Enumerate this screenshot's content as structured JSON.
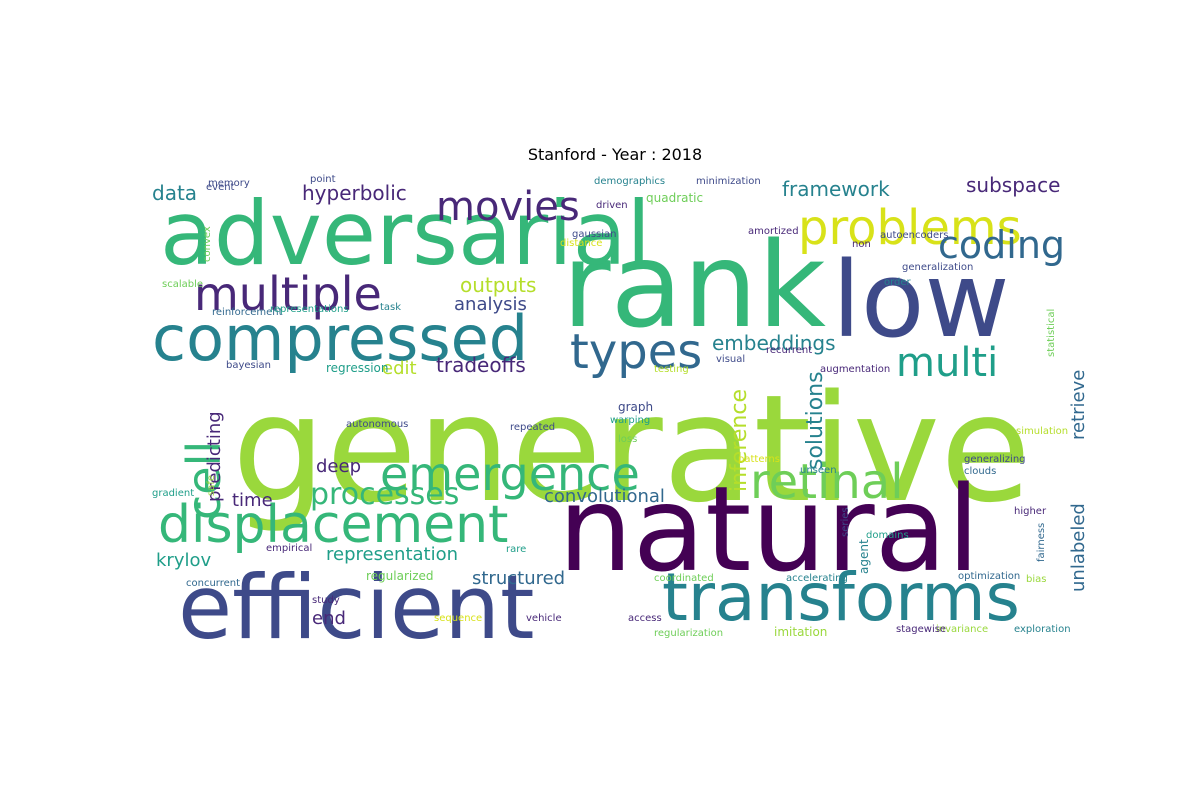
{
  "title": "Stanford - Year : 2018",
  "palette": {
    "dark_purple": "#440154",
    "purple": "#482878",
    "indigo": "#3e4a89",
    "blue": "#31688e",
    "teal": "#26828e",
    "cyan": "#1f9e89",
    "green": "#35b779",
    "light_green": "#6ece58",
    "lime": "#9ad83c",
    "yellow_green": "#b5de2b",
    "yellow": "#d8e219"
  },
  "words": [
    {
      "text": "generative",
      "size": 148,
      "color": "lime",
      "vertical": false
    },
    {
      "text": "natural",
      "size": 118,
      "color": "dark_purple",
      "vertical": false
    },
    {
      "text": "rank",
      "size": 118,
      "color": "green",
      "vertical": false
    },
    {
      "text": "low",
      "size": 104,
      "color": "indigo",
      "vertical": false
    },
    {
      "text": "adversarial",
      "size": 88,
      "color": "green",
      "vertical": false
    },
    {
      "text": "efficient",
      "size": 88,
      "color": "indigo",
      "vertical": false
    },
    {
      "text": "transforms",
      "size": 66,
      "color": "teal",
      "vertical": false
    },
    {
      "text": "compressed",
      "size": 62,
      "color": "teal",
      "vertical": false
    },
    {
      "text": "displacement",
      "size": 52,
      "color": "green",
      "vertical": false
    },
    {
      "text": "emergence",
      "size": 46,
      "color": "green",
      "vertical": false
    },
    {
      "text": "problems",
      "size": 48,
      "color": "yellow",
      "vertical": false
    },
    {
      "text": "retinal",
      "size": 48,
      "color": "light_green",
      "vertical": false
    },
    {
      "text": "types",
      "size": 48,
      "color": "blue",
      "vertical": false
    },
    {
      "text": "multiple",
      "size": 46,
      "color": "purple",
      "vertical": false
    },
    {
      "text": "cell",
      "size": 46,
      "color": "green",
      "vertical": true
    },
    {
      "text": "multi",
      "size": 40,
      "color": "cyan",
      "vertical": false
    },
    {
      "text": "movies",
      "size": 40,
      "color": "purple",
      "vertical": false
    },
    {
      "text": "coding",
      "size": 38,
      "color": "blue",
      "vertical": false
    },
    {
      "text": "processes",
      "size": 30,
      "color": "green",
      "vertical": false
    },
    {
      "text": "inference",
      "size": 22,
      "color": "yellow_green",
      "vertical": true
    },
    {
      "text": "solutions",
      "size": 22,
      "color": "teal",
      "vertical": true
    },
    {
      "text": "embeddings",
      "size": 20,
      "color": "teal",
      "vertical": false
    },
    {
      "text": "hyperbolic",
      "size": 20,
      "color": "purple",
      "vertical": false
    },
    {
      "text": "outputs",
      "size": 20,
      "color": "yellow_green",
      "vertical": false
    },
    {
      "text": "tradeoffs",
      "size": 20,
      "color": "purple",
      "vertical": false
    },
    {
      "text": "framework",
      "size": 20,
      "color": "teal",
      "vertical": false
    },
    {
      "text": "subspace",
      "size": 20,
      "color": "purple",
      "vertical": false
    },
    {
      "text": "data",
      "size": 20,
      "color": "teal",
      "vertical": false
    },
    {
      "text": "analysis",
      "size": 18,
      "color": "indigo",
      "vertical": false
    },
    {
      "text": "edit",
      "size": 18,
      "color": "yellow_green",
      "vertical": false
    },
    {
      "text": "convolutional",
      "size": 18,
      "color": "blue",
      "vertical": false
    },
    {
      "text": "deep",
      "size": 18,
      "color": "purple",
      "vertical": false
    },
    {
      "text": "time",
      "size": 18,
      "color": "purple",
      "vertical": false
    },
    {
      "text": "krylov",
      "size": 18,
      "color": "cyan",
      "vertical": false
    },
    {
      "text": "representation",
      "size": 18,
      "color": "cyan",
      "vertical": false
    },
    {
      "text": "structured",
      "size": 18,
      "color": "blue",
      "vertical": false
    },
    {
      "text": "end",
      "size": 18,
      "color": "purple",
      "vertical": false
    },
    {
      "text": "predicting",
      "size": 18,
      "color": "purple",
      "vertical": true
    },
    {
      "text": "retrieve",
      "size": 18,
      "color": "blue",
      "vertical": true
    },
    {
      "text": "unlabeled",
      "size": 18,
      "color": "blue",
      "vertical": true
    },
    {
      "text": "regularized",
      "size": 12,
      "color": "light_green",
      "vertical": false
    },
    {
      "text": "regression",
      "size": 12,
      "color": "cyan",
      "vertical": false
    },
    {
      "text": "graph",
      "size": 12,
      "color": "indigo",
      "vertical": false
    },
    {
      "text": "gaussian",
      "size": 10,
      "color": "indigo",
      "vertical": false
    },
    {
      "text": "quadratic",
      "size": 12,
      "color": "light_green",
      "vertical": false
    },
    {
      "text": "amortized",
      "size": 10,
      "color": "purple",
      "vertical": false
    },
    {
      "text": "autoencoders",
      "size": 10,
      "color": "indigo",
      "vertical": false
    },
    {
      "text": "non",
      "size": 10,
      "color": "purple",
      "vertical": false
    },
    {
      "text": "generalization",
      "size": 10,
      "color": "indigo",
      "vertical": false
    },
    {
      "text": "order",
      "size": 10,
      "color": "teal",
      "vertical": false
    },
    {
      "text": "recurrent",
      "size": 10,
      "color": "purple",
      "vertical": false
    },
    {
      "text": "augmentation",
      "size": 10,
      "color": "purple",
      "vertical": false
    },
    {
      "text": "testing",
      "size": 10,
      "color": "yellow_green",
      "vertical": false
    },
    {
      "text": "visual",
      "size": 10,
      "color": "indigo",
      "vertical": false
    },
    {
      "text": "repeated",
      "size": 10,
      "color": "indigo",
      "vertical": false
    },
    {
      "text": "warping",
      "size": 10,
      "color": "cyan",
      "vertical": false
    },
    {
      "text": "loss",
      "size": 10,
      "color": "light_green",
      "vertical": false
    },
    {
      "text": "patterns",
      "size": 10,
      "color": "yellow",
      "vertical": false
    },
    {
      "text": "unseen",
      "size": 10,
      "color": "teal",
      "vertical": false
    },
    {
      "text": "series",
      "size": 10,
      "color": "indigo",
      "vertical": true
    },
    {
      "text": "agent",
      "size": 12,
      "color": "teal",
      "vertical": true
    },
    {
      "text": "domains",
      "size": 10,
      "color": "cyan",
      "vertical": false
    },
    {
      "text": "coordinated",
      "size": 10,
      "color": "light_green",
      "vertical": false
    },
    {
      "text": "accelerating",
      "size": 10,
      "color": "teal",
      "vertical": false
    },
    {
      "text": "optimization",
      "size": 10,
      "color": "blue",
      "vertical": false
    },
    {
      "text": "bias",
      "size": 10,
      "color": "lime",
      "vertical": false
    },
    {
      "text": "fairness",
      "size": 10,
      "color": "blue",
      "vertical": true
    },
    {
      "text": "higher",
      "size": 10,
      "color": "purple",
      "vertical": false
    },
    {
      "text": "clouds",
      "size": 10,
      "color": "blue",
      "vertical": false
    },
    {
      "text": "generalizing",
      "size": 10,
      "color": "indigo",
      "vertical": false
    },
    {
      "text": "simulation",
      "size": 10,
      "color": "yellow_green",
      "vertical": false
    },
    {
      "text": "statistical",
      "size": 10,
      "color": "light_green",
      "vertical": true
    },
    {
      "text": "exploration",
      "size": 10,
      "color": "teal",
      "vertical": false
    },
    {
      "text": "invariance",
      "size": 10,
      "color": "lime",
      "vertical": false
    },
    {
      "text": "stagewise",
      "size": 10,
      "color": "purple",
      "vertical": false
    },
    {
      "text": "imitation",
      "size": 12,
      "color": "lime",
      "vertical": false
    },
    {
      "text": "regularization",
      "size": 10,
      "color": "light_green",
      "vertical": false
    },
    {
      "text": "access",
      "size": 10,
      "color": "purple",
      "vertical": false
    },
    {
      "text": "vehicle",
      "size": 10,
      "color": "purple",
      "vertical": false
    },
    {
      "text": "sequence",
      "size": 10,
      "color": "yellow",
      "vertical": false
    },
    {
      "text": "study",
      "size": 10,
      "color": "purple",
      "vertical": false
    },
    {
      "text": "concurrent",
      "size": 10,
      "color": "blue",
      "vertical": false
    },
    {
      "text": "empirical",
      "size": 10,
      "color": "purple",
      "vertical": false
    },
    {
      "text": "rare",
      "size": 10,
      "color": "cyan",
      "vertical": false
    },
    {
      "text": "safe",
      "size": 10,
      "color": "lime",
      "vertical": true
    },
    {
      "text": "gradient",
      "size": 10,
      "color": "cyan",
      "vertical": false
    },
    {
      "text": "autonomous",
      "size": 10,
      "color": "indigo",
      "vertical": false
    },
    {
      "text": "bayesian",
      "size": 10,
      "color": "indigo",
      "vertical": false
    },
    {
      "text": "reinforcement",
      "size": 10,
      "color": "blue",
      "vertical": false
    },
    {
      "text": "representations",
      "size": 10,
      "color": "cyan",
      "vertical": false
    },
    {
      "text": "scalable",
      "size": 10,
      "color": "light_green",
      "vertical": false
    },
    {
      "text": "task",
      "size": 10,
      "color": "teal",
      "vertical": false
    },
    {
      "text": "convex",
      "size": 10,
      "color": "light_green",
      "vertical": true
    },
    {
      "text": "event",
      "size": 10,
      "color": "indigo",
      "vertical": false
    },
    {
      "text": "memory",
      "size": 10,
      "color": "indigo",
      "vertical": false
    },
    {
      "text": "point",
      "size": 10,
      "color": "indigo",
      "vertical": false
    },
    {
      "text": "demographics",
      "size": 10,
      "color": "teal",
      "vertical": false
    },
    {
      "text": "minimization",
      "size": 10,
      "color": "indigo",
      "vertical": false
    },
    {
      "text": "driven",
      "size": 10,
      "color": "purple",
      "vertical": false
    },
    {
      "text": "distance",
      "size": 10,
      "color": "yellow",
      "vertical": false
    }
  ]
}
